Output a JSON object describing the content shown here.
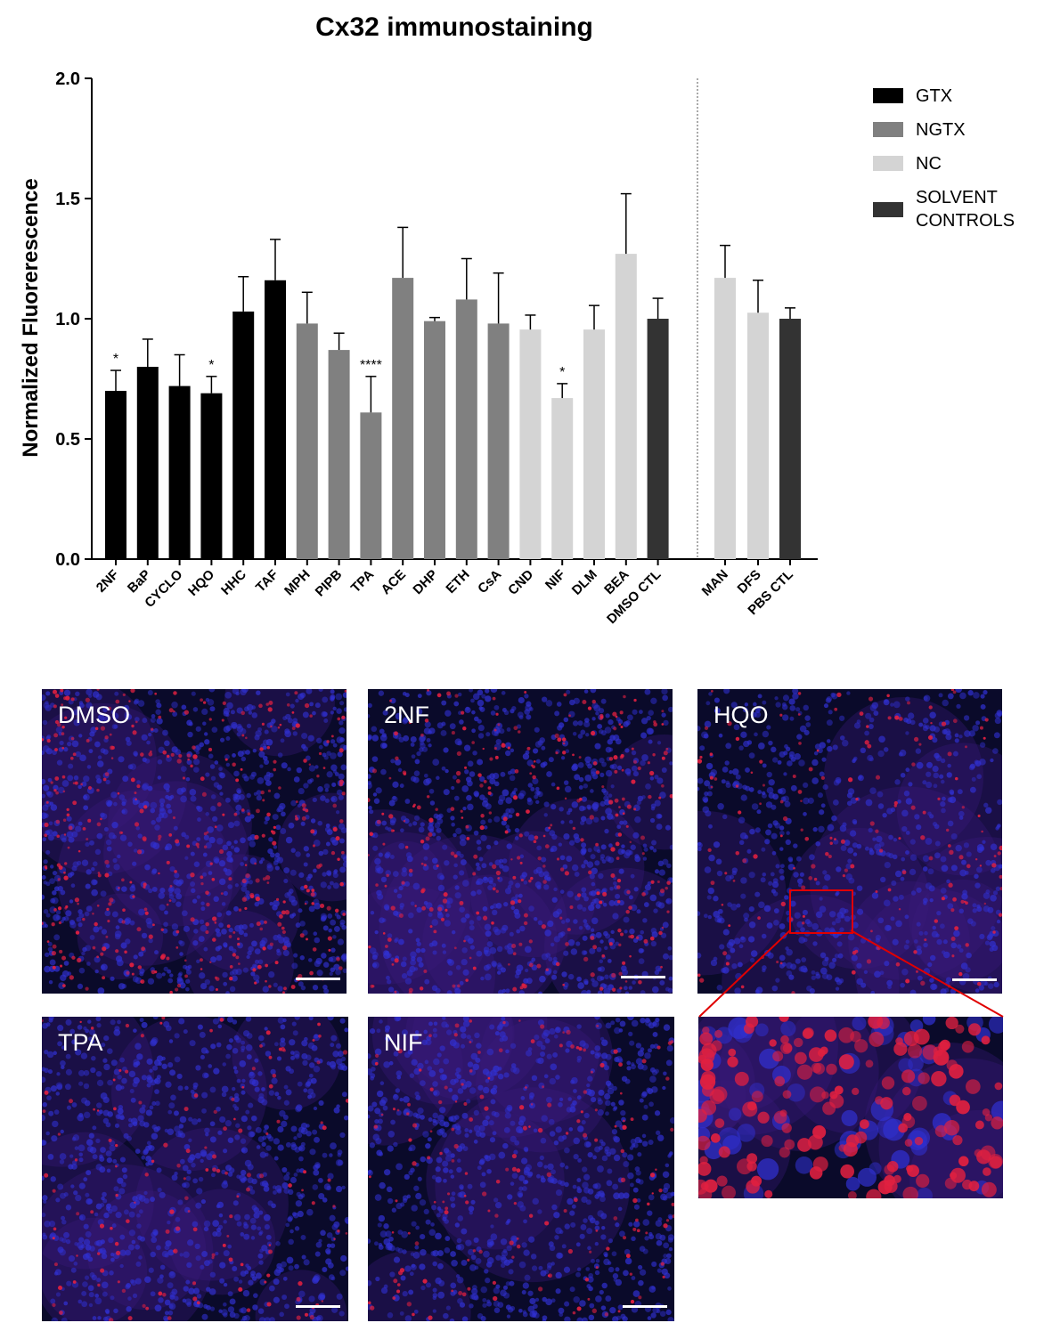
{
  "chart_data": {
    "type": "bar",
    "title": "Cx32 immunostaining",
    "ylabel": "Normalized Fluorerescence",
    "xlabel": "",
    "ylim": [
      0,
      2.0
    ],
    "yticks": [
      "0.0",
      "0.5",
      "1.0",
      "1.5",
      "2.0"
    ],
    "grid": false,
    "legend_position": "top-right",
    "legend": [
      {
        "key": "GTX",
        "label": "GTX",
        "color": "#000000"
      },
      {
        "key": "NGTX",
        "label": "NGTX",
        "color": "#808080"
      },
      {
        "key": "NC",
        "label": "NC",
        "color": "#d4d4d4"
      },
      {
        "key": "SOLVENT",
        "label": "SOLVENT\nCONTROLS",
        "color": "#333333"
      }
    ],
    "bars": [
      {
        "label": "2NF",
        "value": 0.7,
        "error": 0.085,
        "group": "GTX",
        "sig": "*"
      },
      {
        "label": "BaP",
        "value": 0.8,
        "error": 0.115,
        "group": "GTX",
        "sig": ""
      },
      {
        "label": "CYCLO",
        "value": 0.72,
        "error": 0.13,
        "group": "GTX",
        "sig": ""
      },
      {
        "label": "HQO",
        "value": 0.69,
        "error": 0.07,
        "group": "GTX",
        "sig": "*"
      },
      {
        "label": "HHC",
        "value": 1.03,
        "error": 0.145,
        "group": "GTX",
        "sig": ""
      },
      {
        "label": "TAF",
        "value": 1.16,
        "error": 0.17,
        "group": "GTX",
        "sig": ""
      },
      {
        "label": "MPH",
        "value": 0.98,
        "error": 0.13,
        "group": "NGTX",
        "sig": ""
      },
      {
        "label": "PIPB",
        "value": 0.87,
        "error": 0.07,
        "group": "NGTX",
        "sig": ""
      },
      {
        "label": "TPA",
        "value": 0.61,
        "error": 0.15,
        "group": "NGTX",
        "sig": "****"
      },
      {
        "label": "ACE",
        "value": 1.17,
        "error": 0.21,
        "group": "NGTX",
        "sig": ""
      },
      {
        "label": "DHP",
        "value": 0.99,
        "error": 0.015,
        "group": "NGTX",
        "sig": ""
      },
      {
        "label": "ETH",
        "value": 1.08,
        "error": 0.17,
        "group": "NGTX",
        "sig": ""
      },
      {
        "label": "CsA",
        "value": 0.98,
        "error": 0.21,
        "group": "NGTX",
        "sig": ""
      },
      {
        "label": "CND",
        "value": 0.955,
        "error": 0.06,
        "group": "NC",
        "sig": ""
      },
      {
        "label": "NIF",
        "value": 0.67,
        "error": 0.06,
        "group": "NC",
        "sig": "*"
      },
      {
        "label": "DLM",
        "value": 0.955,
        "error": 0.1,
        "group": "NC",
        "sig": ""
      },
      {
        "label": "BEA",
        "value": 1.27,
        "error": 0.25,
        "group": "NC",
        "sig": ""
      },
      {
        "label": "DMSO CTL",
        "value": 1.0,
        "error": 0.085,
        "group": "SOLVENT",
        "sig": ""
      },
      {
        "label": "MAN",
        "value": 1.17,
        "error": 0.135,
        "group": "NC",
        "sig": ""
      },
      {
        "label": "DFS",
        "value": 1.025,
        "error": 0.135,
        "group": "NC",
        "sig": ""
      },
      {
        "label": "PBS CTL",
        "value": 1.0,
        "error": 0.045,
        "group": "SOLVENT",
        "sig": ""
      }
    ]
  },
  "micrographs": [
    {
      "label": "DMSO"
    },
    {
      "label": "2NF"
    },
    {
      "label": "HQO"
    },
    {
      "label": "TPA"
    },
    {
      "label": "NIF"
    }
  ]
}
